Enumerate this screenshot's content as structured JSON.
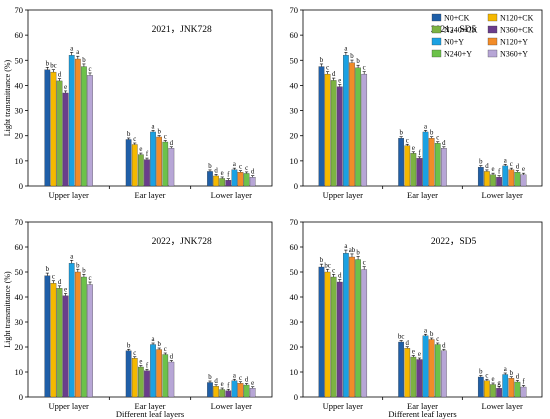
{
  "legend": [
    {
      "name": "N0+CK",
      "color": "#1f5fa8"
    },
    {
      "name": "N120+CK",
      "color": "#f5b800"
    },
    {
      "name": "N240+CK",
      "color": "#7cb342"
    },
    {
      "name": "N360+CK",
      "color": "#6a3d8c"
    },
    {
      "name": "N0+Y",
      "color": "#1ba1e2"
    },
    {
      "name": "N120+Y",
      "color": "#f28c28"
    },
    {
      "name": "N240+Y",
      "color": "#6cc24a"
    },
    {
      "name": "N360+Y",
      "color": "#b7a6d6"
    }
  ],
  "chart_data": [
    {
      "type": "bar",
      "title": "2021，JNK728",
      "ylabel": "Light transmittance (%)",
      "xlabel": "",
      "ylim": [
        0,
        70
      ],
      "yticks": [
        0,
        10,
        20,
        30,
        40,
        50,
        60,
        70
      ],
      "categories": [
        "Upper layer",
        "Ear layer",
        "Lower layer"
      ],
      "series": [
        {
          "name": "N0+CK",
          "values": [
            46.2,
            18.5,
            5.8
          ],
          "labels": [
            "b",
            "b",
            "b"
          ]
        },
        {
          "name": "N120+CK",
          "values": [
            45.3,
            16.5,
            4.0
          ],
          "labels": [
            "bc",
            "c",
            "d"
          ]
        },
        {
          "name": "N240+CK",
          "values": [
            41.8,
            12.5,
            3.0
          ],
          "labels": [
            "d",
            "e",
            "e"
          ]
        },
        {
          "name": "N360+CK",
          "values": [
            37.0,
            10.5,
            2.3
          ],
          "labels": [
            "e",
            "f",
            "f"
          ]
        },
        {
          "name": "N0+Y",
          "values": [
            52.0,
            21.5,
            6.5
          ],
          "labels": [
            "a",
            "a",
            "a"
          ]
        },
        {
          "name": "N120+Y",
          "values": [
            50.5,
            19.5,
            5.5
          ],
          "labels": [
            "a",
            "b",
            "c"
          ]
        },
        {
          "name": "N240+Y",
          "values": [
            47.5,
            17.5,
            5.0
          ],
          "labels": [
            "b",
            "c",
            "c"
          ]
        },
        {
          "name": "N360+Y",
          "values": [
            44.0,
            15.0,
            3.5
          ],
          "labels": [
            "c",
            "d",
            "d"
          ]
        }
      ]
    },
    {
      "type": "bar",
      "title": "2021，SD5",
      "ylabel": "",
      "xlabel": "",
      "ylim": [
        0,
        70
      ],
      "yticks": [
        0,
        10,
        20,
        30,
        40,
        50,
        60,
        70
      ],
      "categories": [
        "Upper layer",
        "Ear layer",
        "Lower layer"
      ],
      "series": [
        {
          "name": "N0+CK",
          "values": [
            47.5,
            19.0,
            7.5
          ],
          "labels": [
            "b",
            "b",
            "b"
          ]
        },
        {
          "name": "N120+CK",
          "values": [
            44.5,
            16.0,
            5.8
          ],
          "labels": [
            "c",
            "c",
            "d"
          ]
        },
        {
          "name": "N240+CK",
          "values": [
            42.0,
            13.0,
            4.5
          ],
          "labels": [
            "d",
            "e",
            "e"
          ]
        },
        {
          "name": "N360+CK",
          "values": [
            39.5,
            11.0,
            3.5
          ],
          "labels": [
            "e",
            "f",
            "f"
          ]
        },
        {
          "name": "N0+Y",
          "values": [
            52.0,
            21.5,
            8.0
          ],
          "labels": [
            "a",
            "a",
            "a"
          ]
        },
        {
          "name": "N120+Y",
          "values": [
            49.0,
            19.0,
            6.5
          ],
          "labels": [
            "b",
            "b",
            "c"
          ]
        },
        {
          "name": "N240+Y",
          "values": [
            47.0,
            17.0,
            5.5
          ],
          "labels": [
            "b",
            "c",
            "d"
          ]
        },
        {
          "name": "N360+Y",
          "values": [
            44.5,
            15.0,
            4.5
          ],
          "labels": [
            "c",
            "d",
            "e"
          ]
        }
      ]
    },
    {
      "type": "bar",
      "title": "2022，JNK728",
      "ylabel": "Light transmittance (%)",
      "xlabel": "Different leaf layers",
      "ylim": [
        0,
        70
      ],
      "yticks": [
        0,
        10,
        20,
        30,
        40,
        50,
        60,
        70
      ],
      "categories": [
        "Upper layer",
        "Ear layer",
        "Lower layer"
      ],
      "series": [
        {
          "name": "N0+CK",
          "values": [
            48.5,
            18.5,
            5.8
          ],
          "labels": [
            "b",
            "b",
            "b"
          ]
        },
        {
          "name": "N120+CK",
          "values": [
            45.5,
            15.5,
            4.3
          ],
          "labels": [
            "c",
            "c",
            "d"
          ]
        },
        {
          "name": "N240+CK",
          "values": [
            43.5,
            12.0,
            3.0
          ],
          "labels": [
            "d",
            "e",
            "e"
          ]
        },
        {
          "name": "N360+CK",
          "values": [
            40.5,
            10.5,
            2.5
          ],
          "labels": [
            "e",
            "f",
            "f"
          ]
        },
        {
          "name": "N0+Y",
          "values": [
            53.5,
            21.0,
            6.5
          ],
          "labels": [
            "a",
            "a",
            "a"
          ]
        },
        {
          "name": "N120+Y",
          "values": [
            50.0,
            19.0,
            5.5
          ],
          "labels": [
            "b",
            "b",
            "c"
          ]
        },
        {
          "name": "N240+Y",
          "values": [
            48.0,
            17.0,
            4.8
          ],
          "labels": [
            "b",
            "c",
            "d"
          ]
        },
        {
          "name": "N360+Y",
          "values": [
            45.0,
            14.0,
            3.5
          ],
          "labels": [
            "c",
            "d",
            "e"
          ]
        }
      ]
    },
    {
      "type": "bar",
      "title": "2022，SD5",
      "ylabel": "",
      "xlabel": "Different leaf layers",
      "ylim": [
        0,
        70
      ],
      "yticks": [
        0,
        10,
        20,
        30,
        40,
        50,
        60,
        70
      ],
      "categories": [
        "Upper layer",
        "Ear layer",
        "Lower layer"
      ],
      "series": [
        {
          "name": "N0+CK",
          "values": [
            52.0,
            22.0,
            8.0
          ],
          "labels": [
            "b",
            "bc",
            "b"
          ]
        },
        {
          "name": "N120+CK",
          "values": [
            50.0,
            19.5,
            6.5
          ],
          "labels": [
            "bc",
            "d",
            "c"
          ]
        },
        {
          "name": "N240+CK",
          "values": [
            48.0,
            16.0,
            5.0
          ],
          "labels": [
            "c",
            "e",
            "e"
          ]
        },
        {
          "name": "N360+CK",
          "values": [
            46.0,
            15.0,
            3.5
          ],
          "labels": [
            "d",
            "e",
            "g"
          ]
        },
        {
          "name": "N0+Y",
          "values": [
            57.5,
            24.5,
            9.0
          ],
          "labels": [
            "a",
            "a",
            "a"
          ]
        },
        {
          "name": "N120+Y",
          "values": [
            56.0,
            23.0,
            7.5
          ],
          "labels": [
            "ab",
            "b",
            "b"
          ]
        },
        {
          "name": "N240+Y",
          "values": [
            55.0,
            21.0,
            6.0
          ],
          "labels": [
            "b",
            "c",
            "d"
          ]
        },
        {
          "name": "N360+Y",
          "values": [
            51.0,
            18.5,
            4.0
          ],
          "labels": [
            "c",
            "d",
            "f"
          ]
        }
      ]
    }
  ]
}
